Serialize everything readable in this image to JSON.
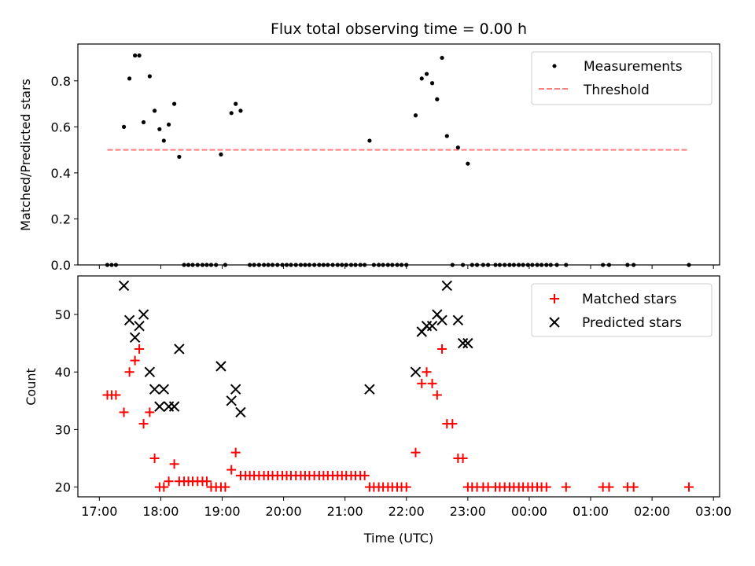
{
  "chart_data": {
    "title": "Flux total observing time = 0.00 h",
    "xlabel": "Time (UTC)",
    "x_axis_unit": "hours since 17:00 UTC (date axis)",
    "xlim": [
      -0.35,
      10.1
    ],
    "xticks": [
      {
        "v": 0,
        "label": "17:00"
      },
      {
        "v": 1,
        "label": "18:00"
      },
      {
        "v": 2,
        "label": "19:00"
      },
      {
        "v": 3,
        "label": "20:00"
      },
      {
        "v": 4,
        "label": "21:00"
      },
      {
        "v": 5,
        "label": "22:00"
      },
      {
        "v": 6,
        "label": "23:00"
      },
      {
        "v": 7,
        "label": "00:00"
      },
      {
        "v": 8,
        "label": "01:00"
      },
      {
        "v": 9,
        "label": "02:00"
      },
      {
        "v": 10,
        "label": "03:00"
      }
    ],
    "panels": [
      {
        "type": "scatter",
        "ylabel": "Matched/Predicted stars",
        "ylim": [
          0,
          0.96
        ],
        "yticks": [
          {
            "v": 0,
            "label": "0.0"
          },
          {
            "v": 0.2,
            "label": "0.2"
          },
          {
            "v": 0.4,
            "label": "0.4"
          },
          {
            "v": 0.6,
            "label": "0.6"
          },
          {
            "v": 0.8,
            "label": "0.8"
          }
        ],
        "legend": {
          "position": "top-right",
          "entries": [
            "Measurements",
            "Threshold"
          ]
        },
        "threshold": {
          "value": 0.5,
          "x": [
            0.13,
            9.6
          ],
          "color": "#ff7f7f"
        },
        "measurements": {
          "x": [
            0.13,
            0.2,
            0.27,
            0.4,
            0.49,
            0.58,
            0.65,
            0.72,
            0.82,
            0.9,
            0.98,
            1.05,
            1.13,
            1.22,
            1.3,
            1.38,
            1.45,
            1.52,
            1.6,
            1.68,
            1.75,
            1.82,
            1.9,
            1.98,
            2.05,
            2.15,
            2.22,
            2.3,
            2.45,
            2.52,
            2.6,
            2.68,
            2.75,
            2.82,
            2.9,
            2.98,
            3.05,
            3.12,
            3.2,
            3.28,
            3.35,
            3.42,
            3.5,
            3.58,
            3.65,
            3.72,
            3.8,
            3.88,
            3.95,
            4.02,
            4.1,
            4.17,
            4.25,
            4.32,
            4.4,
            4.47,
            4.55,
            4.62,
            4.7,
            4.77,
            4.85,
            4.92,
            5.0,
            5.15,
            5.25,
            5.33,
            5.42,
            5.5,
            5.58,
            5.66,
            5.75,
            5.84,
            5.92,
            6.0,
            6.07,
            6.15,
            6.25,
            6.33,
            6.45,
            6.52,
            6.6,
            6.68,
            6.75,
            6.83,
            6.9,
            6.98,
            7.05,
            7.13,
            7.2,
            7.28,
            7.35,
            7.45,
            7.6,
            8.2,
            8.3,
            8.6,
            8.7,
            9.6
          ],
          "y": [
            0,
            0,
            0,
            0.6,
            0.81,
            0.91,
            0.91,
            0.62,
            0.82,
            0.67,
            0.59,
            0.54,
            0.61,
            0.7,
            0.47,
            0,
            0,
            0,
            0,
            0,
            0,
            0,
            0,
            0.48,
            0,
            0.66,
            0.7,
            0.67,
            0,
            0,
            0,
            0,
            0,
            0,
            0,
            0,
            0,
            0,
            0,
            0,
            0,
            0,
            0,
            0,
            0,
            0,
            0,
            0,
            0,
            0,
            0,
            0,
            0,
            0,
            0.54,
            0,
            0,
            0,
            0,
            0,
            0,
            0,
            0,
            0.65,
            0.81,
            0.83,
            0.79,
            0.72,
            0.9,
            0.56,
            0,
            0.51,
            0,
            0.44,
            0,
            0,
            0,
            0,
            0,
            0,
            0,
            0,
            0,
            0,
            0,
            0,
            0,
            0,
            0,
            0,
            0,
            0,
            0,
            0,
            0,
            0,
            0,
            0
          ]
        }
      },
      {
        "type": "scatter",
        "ylabel": "Count",
        "ylim": [
          18.3,
          56.7
        ],
        "yticks": [
          {
            "v": 20,
            "label": "20"
          },
          {
            "v": 30,
            "label": "30"
          },
          {
            "v": 40,
            "label": "40"
          },
          {
            "v": 50,
            "label": "50"
          }
        ],
        "legend": {
          "position": "top-right",
          "entries": [
            "Matched stars",
            "Predicted stars"
          ]
        },
        "matched": {
          "name": "Matched stars",
          "color": "#ff0000",
          "x": [
            0.13,
            0.2,
            0.27,
            0.4,
            0.49,
            0.58,
            0.65,
            0.72,
            0.82,
            0.9,
            0.98,
            1.05,
            1.13,
            1.22,
            1.3,
            1.38,
            1.45,
            1.52,
            1.6,
            1.68,
            1.75,
            1.82,
            1.9,
            1.98,
            2.05,
            2.15,
            2.22,
            2.3,
            2.38,
            2.45,
            2.52,
            2.6,
            2.68,
            2.75,
            2.82,
            2.9,
            2.98,
            3.05,
            3.12,
            3.2,
            3.28,
            3.35,
            3.42,
            3.5,
            3.58,
            3.65,
            3.72,
            3.8,
            3.88,
            3.95,
            4.02,
            4.1,
            4.17,
            4.25,
            4.32,
            4.4,
            4.47,
            4.55,
            4.62,
            4.7,
            4.77,
            4.85,
            4.92,
            5.0,
            5.15,
            5.25,
            5.33,
            5.42,
            5.5,
            5.58,
            5.66,
            5.75,
            5.84,
            5.92,
            6.0,
            6.07,
            6.15,
            6.25,
            6.33,
            6.45,
            6.52,
            6.6,
            6.68,
            6.75,
            6.83,
            6.9,
            6.98,
            7.05,
            7.13,
            7.2,
            7.28,
            7.6,
            8.2,
            8.3,
            8.6,
            8.7,
            9.6
          ],
          "y": [
            36,
            36,
            36,
            33,
            40,
            42,
            44,
            31,
            33,
            25,
            20,
            20,
            21,
            24,
            21,
            21,
            21,
            21,
            21,
            21,
            21,
            20,
            20,
            20,
            20,
            23,
            26,
            22,
            22,
            22,
            22,
            22,
            22,
            22,
            22,
            22,
            22,
            22,
            22,
            22,
            22,
            22,
            22,
            22,
            22,
            22,
            22,
            22,
            22,
            22,
            22,
            22,
            22,
            22,
            22,
            20,
            20,
            20,
            20,
            20,
            20,
            20,
            20,
            20,
            26,
            38,
            40,
            38,
            36,
            44,
            31,
            31,
            25,
            25,
            20,
            20,
            20,
            20,
            20,
            20,
            20,
            20,
            20,
            20,
            20,
            20,
            20,
            20,
            20,
            20,
            20,
            20,
            20,
            20,
            20,
            20,
            20
          ]
        },
        "predicted": {
          "name": "Predicted stars",
          "color": "#000000",
          "x": [
            0.4,
            0.49,
            0.58,
            0.65,
            0.72,
            0.82,
            0.9,
            0.98,
            1.05,
            1.13,
            1.22,
            1.3,
            1.98,
            2.15,
            2.22,
            2.3,
            4.4,
            5.15,
            5.25,
            5.33,
            5.42,
            5.5,
            5.58,
            5.66,
            5.84,
            5.92,
            6.0
          ],
          "y": [
            55,
            49,
            46,
            48,
            50,
            40,
            37,
            34,
            37,
            34,
            34,
            44,
            41,
            35,
            37,
            33,
            37,
            40,
            47,
            48,
            48,
            50,
            49,
            55,
            49,
            45,
            45
          ]
        }
      }
    ]
  }
}
